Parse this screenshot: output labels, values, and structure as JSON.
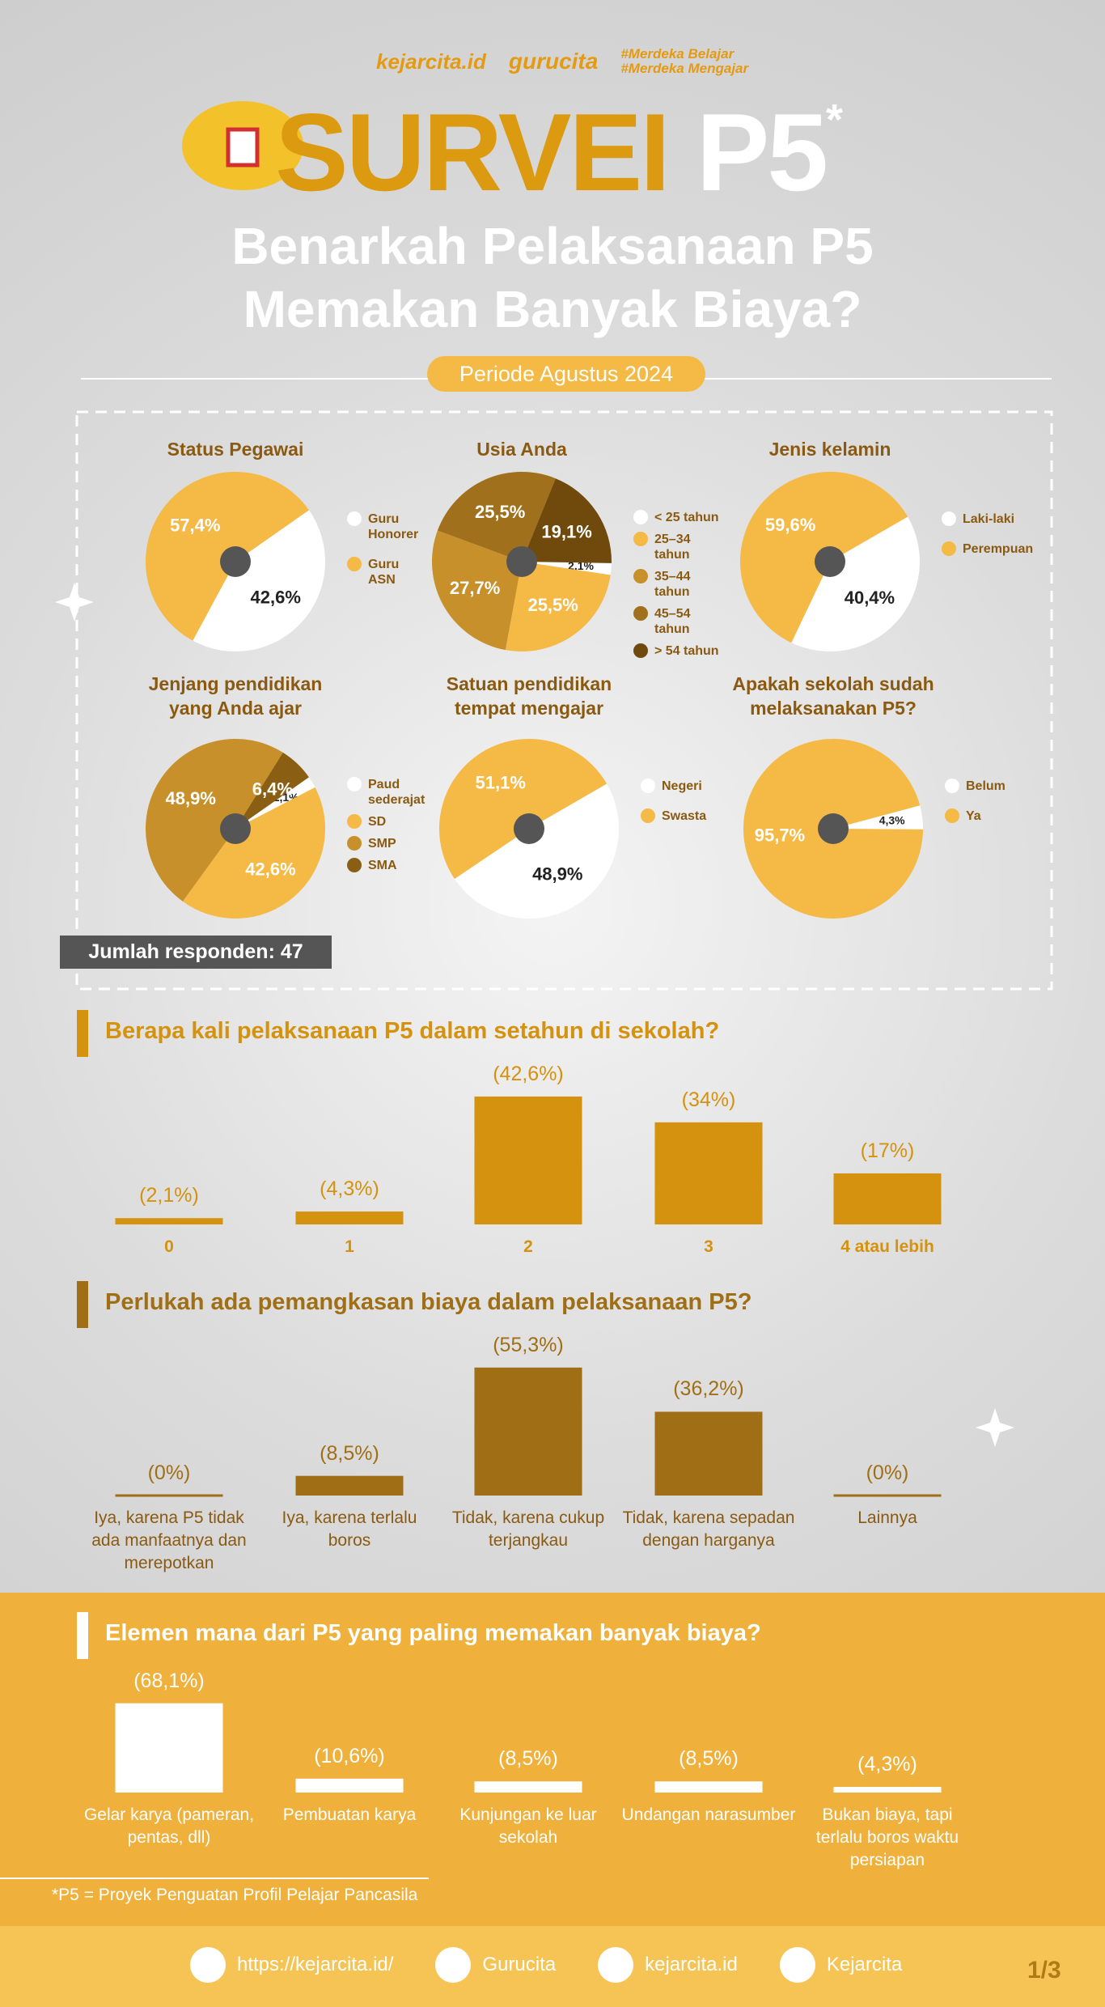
{
  "header": {
    "logos": [
      "kejarcita.id",
      "gurucita",
      "#Merdeka Belajar",
      "#Merdeka Mengajar"
    ],
    "title": "SURVEI",
    "title_accent": "P5",
    "asterisk": "*",
    "subtitle": [
      "Benarkah Pelaksanaan P5",
      "Memakan Banyak Biaya?"
    ],
    "period": "Periode Agustus 2024"
  },
  "respondents": "Jumlah responden: 47",
  "chart_data": [
    {
      "type": "pie",
      "title": "Status Pegawai",
      "categories": [
        "Guru Honorer",
        "Guru ASN"
      ],
      "values": [
        42.6,
        57.4
      ],
      "value_labels": [
        "42,6%",
        "57,4%"
      ],
      "colors": [
        "#ffffff",
        "#f5b945"
      ]
    },
    {
      "type": "pie",
      "title": "Usia Anda",
      "categories": [
        "< 25 tahun",
        "25–34 tahun",
        "35–44 tahun",
        "45–54 tahun",
        "> 54 tahun"
      ],
      "values": [
        2.1,
        25.5,
        27.7,
        25.5,
        19.1
      ],
      "value_labels": [
        "2,1%",
        "25,5%",
        "27,7%",
        "25,5%",
        "19,1%"
      ],
      "colors": [
        "#ffffff",
        "#f5b945",
        "#c8902a",
        "#a0701c",
        "#704a0c"
      ]
    },
    {
      "type": "pie",
      "title": "Jenis kelamin",
      "categories": [
        "Laki-laki",
        "Perempuan"
      ],
      "values": [
        40.4,
        59.6
      ],
      "value_labels": [
        "40,4%",
        "59,6%"
      ],
      "colors": [
        "#ffffff",
        "#f5b945"
      ]
    },
    {
      "type": "pie",
      "title": "Jenjang pendidikan yang Anda ajar",
      "categories": [
        "Paud sederajat",
        "SD",
        "SMP",
        "SMA"
      ],
      "values": [
        2.1,
        42.6,
        48.9,
        6.4
      ],
      "value_labels": [
        "2,1%",
        "42,6%",
        "48,9%",
        "6,4%"
      ],
      "colors": [
        "#ffffff",
        "#f5b945",
        "#c8902a",
        "#8a5f14"
      ]
    },
    {
      "type": "pie",
      "title": "Satuan pendidikan tempat mengajar",
      "categories": [
        "Negeri",
        "Swasta"
      ],
      "values": [
        48.9,
        51.1
      ],
      "value_labels": [
        "48,9%",
        "51,1%"
      ],
      "colors": [
        "#ffffff",
        "#f5b945"
      ]
    },
    {
      "type": "pie",
      "title": "Apakah sekolah sudah melaksanakan P5?",
      "categories": [
        "Belum",
        "Ya"
      ],
      "values": [
        4.3,
        95.7
      ],
      "value_labels": [
        "4,3%",
        "95,7%"
      ],
      "colors": [
        "#ffffff",
        "#f5b945"
      ]
    },
    {
      "type": "bar",
      "title": "Berapa kali pelaksanaan P5 dalam setahun di sekolah?",
      "categories": [
        "0",
        "1",
        "2",
        "3",
        "4 atau lebih"
      ],
      "values": [
        2.1,
        4.3,
        42.6,
        34,
        17
      ],
      "value_labels": [
        "(2,1%)",
        "(4,3%)",
        "(42,6%)",
        "(34%)",
        "(17%)"
      ],
      "color": "#d4920f"
    },
    {
      "type": "bar",
      "title": "Perlukah ada pemangkasan biaya dalam pelaksanaan P5?",
      "categories": [
        "Iya, karena P5 tidak ada manfaatnya dan merepotkan",
        "Iya, karena terlalu boros",
        "Tidak, karena cukup terjangkau",
        "Tidak, karena sepadan dengan harganya",
        "Lainnya"
      ],
      "values": [
        0,
        8.5,
        55.3,
        36.2,
        0
      ],
      "value_labels": [
        "(0%)",
        "(8,5%)",
        "(55,3%)",
        "(36,2%)",
        "(0%)"
      ],
      "color": "#a06f15"
    },
    {
      "type": "bar",
      "title": "Elemen mana dari P5 yang paling memakan banyak biaya?",
      "categories": [
        "Gelar karya (pameran, pentas, dll)",
        "Pembuatan karya",
        "Kunjungan ke luar sekolah",
        "Undangan narasumber",
        "Bukan biaya, tapi terlalu boros waktu persiapan"
      ],
      "values": [
        68.1,
        10.6,
        8.5,
        8.5,
        4.3
      ],
      "value_labels": [
        "(68,1%)",
        "(10,6%)",
        "(8,5%)",
        "(8,5%)",
        "(4,3%)"
      ],
      "color": "#ffffff"
    }
  ],
  "footnote": "*P5 = Proyek Penguatan Profil Pelajar Pancasila",
  "footer": {
    "links": [
      "https://kejarcita.id/",
      "Gurucita",
      "kejarcita.id",
      "Kejarcita"
    ],
    "page": "1/3"
  }
}
